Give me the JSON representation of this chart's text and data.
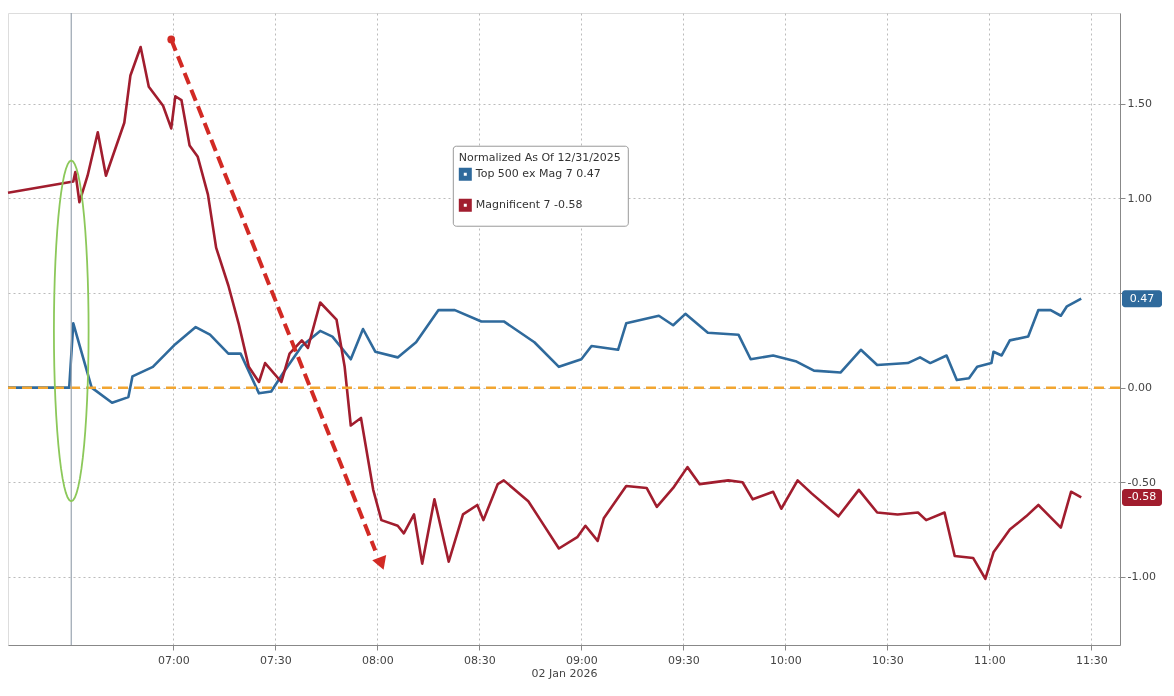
{
  "chart_data": {
    "type": "line",
    "xlabel": "02 Jan 2026",
    "legend_title": "Normalized As Of 12/31/2025",
    "series": [
      {
        "name": "Top 500 ex Mag 7 0.47",
        "color": "#2f6a9c",
        "x": [
          6.19,
          6.49,
          6.51,
          6.6,
          6.7,
          6.78,
          6.8,
          6.9,
          7.01,
          7.11,
          7.18,
          7.27,
          7.33,
          7.42,
          7.48,
          7.54,
          7.63,
          7.72,
          7.78,
          7.87,
          7.93,
          7.99,
          8.1,
          8.19,
          8.3,
          8.38,
          8.51,
          8.62,
          8.77,
          8.89,
          9.0,
          9.05,
          9.18,
          9.22,
          9.38,
          9.45,
          9.51,
          9.62,
          9.77,
          9.83,
          9.94,
          10.05,
          10.14,
          10.27,
          10.37,
          10.45,
          10.6,
          10.66,
          10.71,
          10.79,
          10.84,
          10.9,
          10.94,
          11.01,
          11.02,
          11.06,
          11.1,
          11.19,
          11.24,
          11.3,
          11.35,
          11.38,
          11.45
        ],
        "values": [
          0.0,
          0.0,
          0.34,
          0.0,
          -0.08,
          -0.05,
          0.06,
          0.11,
          0.23,
          0.32,
          0.28,
          0.18,
          0.18,
          -0.03,
          -0.02,
          0.08,
          0.22,
          0.3,
          0.27,
          0.15,
          0.31,
          0.19,
          0.16,
          0.24,
          0.41,
          0.41,
          0.35,
          0.35,
          0.24,
          0.11,
          0.15,
          0.22,
          0.2,
          0.34,
          0.38,
          0.33,
          0.39,
          0.29,
          0.28,
          0.15,
          0.17,
          0.14,
          0.09,
          0.08,
          0.2,
          0.12,
          0.13,
          0.16,
          0.13,
          0.17,
          0.04,
          0.05,
          0.11,
          0.13,
          0.19,
          0.17,
          0.25,
          0.27,
          0.41,
          0.41,
          0.38,
          0.43,
          0.47
        ]
      },
      {
        "name": "Magnificent 7 -0.58",
        "color": "#a11d2e",
        "x": [
          6.19,
          6.51,
          6.52,
          6.54,
          6.58,
          6.63,
          6.67,
          6.76,
          6.79,
          6.84,
          6.88,
          6.95,
          6.99,
          7.01,
          7.04,
          7.08,
          7.12,
          7.17,
          7.21,
          7.27,
          7.32,
          7.37,
          7.42,
          7.45,
          7.53,
          7.57,
          7.63,
          7.66,
          7.72,
          7.8,
          7.84,
          7.87,
          7.92,
          7.98,
          8.02,
          8.1,
          8.13,
          8.18,
          8.22,
          8.28,
          8.35,
          8.42,
          8.49,
          8.52,
          8.59,
          8.62,
          8.74,
          8.8,
          8.89,
          8.98,
          9.02,
          9.08,
          9.11,
          9.22,
          9.32,
          9.37,
          9.45,
          9.52,
          9.58,
          9.72,
          9.79,
          9.84,
          9.94,
          9.98,
          10.06,
          10.13,
          10.26,
          10.36,
          10.45,
          10.55,
          10.65,
          10.69,
          10.78,
          10.83,
          10.92,
          10.98,
          11.02,
          11.1,
          11.18,
          11.24,
          11.35,
          11.4,
          11.45
        ],
        "values": [
          1.03,
          1.09,
          1.14,
          0.98,
          1.12,
          1.35,
          1.12,
          1.4,
          1.65,
          1.8,
          1.59,
          1.49,
          1.37,
          1.54,
          1.52,
          1.28,
          1.22,
          1.02,
          0.74,
          0.54,
          0.34,
          0.11,
          0.03,
          0.13,
          0.03,
          0.18,
          0.25,
          0.21,
          0.45,
          0.36,
          0.11,
          -0.2,
          -0.16,
          -0.54,
          -0.7,
          -0.73,
          -0.77,
          -0.67,
          -0.93,
          -0.59,
          -0.92,
          -0.67,
          -0.62,
          -0.7,
          -0.51,
          -0.49,
          -0.6,
          -0.7,
          -0.85,
          -0.79,
          -0.73,
          -0.81,
          -0.69,
          -0.52,
          -0.53,
          -0.63,
          -0.53,
          -0.42,
          -0.51,
          -0.49,
          -0.5,
          -0.59,
          -0.55,
          -0.64,
          -0.49,
          -0.56,
          -0.68,
          -0.54,
          -0.66,
          -0.67,
          -0.66,
          -0.7,
          -0.66,
          -0.89,
          -0.9,
          -1.01,
          -0.87,
          -0.75,
          -0.68,
          -0.62,
          -0.74,
          -0.55,
          -0.58
        ]
      }
    ],
    "xlim": [
      6.19,
      11.64
    ],
    "xticks": [
      {
        "value": 7,
        "label": "07:00"
      },
      {
        "value": 7.5,
        "label": "07:30"
      },
      {
        "value": 8,
        "label": "08:00"
      },
      {
        "value": 8.5,
        "label": "08:30"
      },
      {
        "value": 9,
        "label": "09:00"
      },
      {
        "value": 9.5,
        "label": "09:30"
      },
      {
        "value": 10,
        "label": "10:00"
      },
      {
        "value": 10.5,
        "label": "10:30"
      },
      {
        "value": 11,
        "label": "11:00"
      },
      {
        "value": 11.5,
        "label": "11:30"
      }
    ],
    "ylim": [
      -1.36,
      1.98
    ],
    "yticks": [
      {
        "value": -1,
        "label": "-1.00"
      },
      {
        "value": -0.5,
        "label": "-0.50"
      },
      {
        "value": 0,
        "label": "0.00"
      },
      {
        "value": 0.5,
        "label": null
      },
      {
        "value": 1,
        "label": "1.00"
      },
      {
        "value": 1.5,
        "label": "1.50"
      }
    ],
    "grid": true,
    "legend": "top",
    "line_style": "solid",
    "ref_lines": [
      {
        "axis": "y",
        "value": 0,
        "color": "#f2a531",
        "line_style": "dashed"
      },
      {
        "axis": "x",
        "value": 6.5,
        "color": "#9aa5b0",
        "line_style": "solid"
      }
    ],
    "annotations": [
      "0.47",
      "-0.58"
    ]
  }
}
